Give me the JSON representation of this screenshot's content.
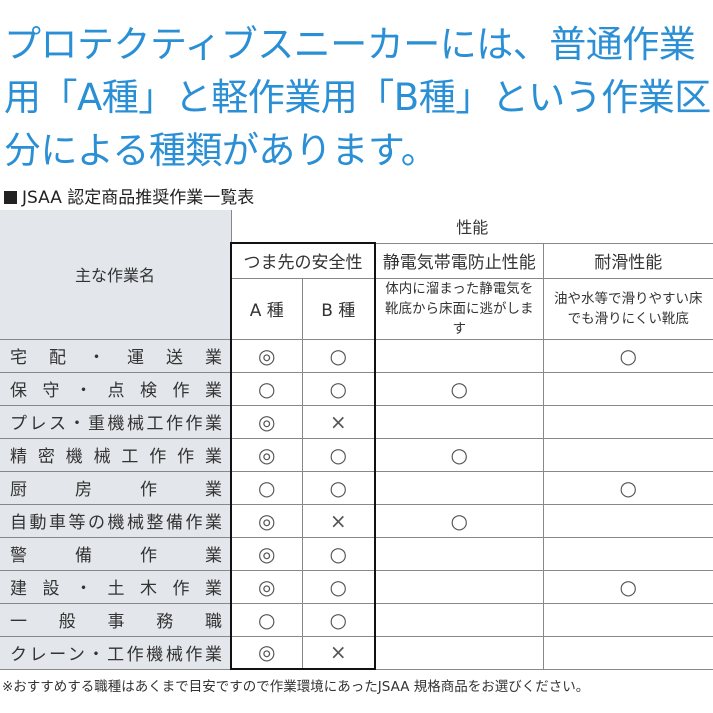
{
  "headline": "プロテクティブスニーカーには、普通作業用「A種」と軽作業用「B種」という作業区分による種類があります。",
  "caption": "JSAA 認定商品推奨作業一覧表",
  "table": {
    "col_main": "主な作業名",
    "performance": "性能",
    "toe_safety": "つま先の安全性",
    "antistatic": "静電気帯電防止性能",
    "slip_resistance": "耐滑性能",
    "type_a": "A 種",
    "type_b": "B 種",
    "antistatic_desc": "体内に溜まった静電気を靴底から床面に逃がします",
    "slip_desc": "油や水等で滑りやすい床でも滑りにくい靴底",
    "rows": [
      {
        "label": "宅配・運送業",
        "a": "◎",
        "b": "○",
        "static": "",
        "slip": "○"
      },
      {
        "label": "保守・点検作業",
        "a": "○",
        "b": "○",
        "static": "○",
        "slip": ""
      },
      {
        "label": "プレス・重機械工作作業",
        "a": "◎",
        "b": "×",
        "static": "",
        "slip": ""
      },
      {
        "label": "精密機械工作作業",
        "a": "◎",
        "b": "○",
        "static": "○",
        "slip": ""
      },
      {
        "label": "厨房作業",
        "a": "○",
        "b": "○",
        "static": "",
        "slip": "○"
      },
      {
        "label": "自動車等の機械整備作業",
        "a": "◎",
        "b": "×",
        "static": "○",
        "slip": ""
      },
      {
        "label": "警備作業",
        "a": "◎",
        "b": "○",
        "static": "",
        "slip": ""
      },
      {
        "label": "建設・土木作業",
        "a": "◎",
        "b": "○",
        "static": "",
        "slip": "○"
      },
      {
        "label": "一般事務職",
        "a": "○",
        "b": "○",
        "static": "",
        "slip": ""
      },
      {
        "label": "クレーン・工作機械作業",
        "a": "◎",
        "b": "×",
        "static": "",
        "slip": ""
      }
    ]
  },
  "footnote": "※おすすめする職種はあくまで目安ですので作業環境にあったJSAA 規格商品をお選びください。",
  "colors": {
    "headline": "#2a8fd4",
    "label_bg": "#e3e6ea"
  }
}
